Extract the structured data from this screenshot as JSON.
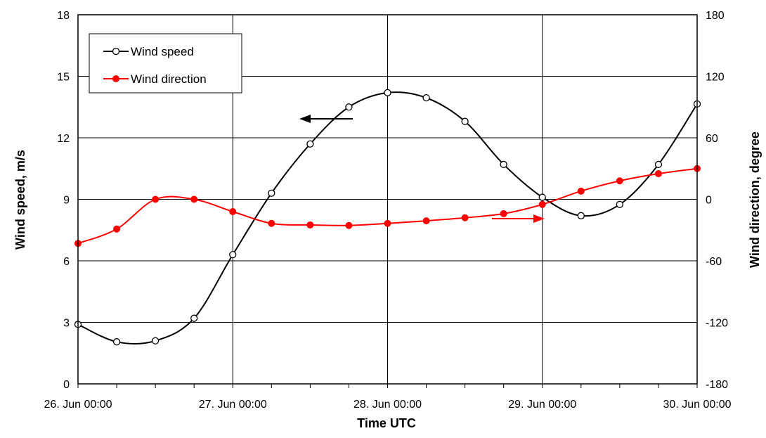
{
  "chart_data": {
    "type": "line",
    "title": "",
    "xlabel": "Time UTC",
    "ylabel": "Wind speed, m/s",
    "y2label": "Wind direction, degree",
    "x_ticks": [
      "26. Jun 00:00",
      "27. Jun 00:00",
      "28. Jun 00:00",
      "29. Jun 00:00",
      "30. Jun 00:00"
    ],
    "xlim": [
      "2000-06-26 00:00",
      "2000-06-30 00:00"
    ],
    "ylim": [
      0,
      18
    ],
    "y_ticks": [
      "0",
      "3",
      "6",
      "9",
      "12",
      "15",
      "18"
    ],
    "y2lim": [
      -180,
      180
    ],
    "y2_ticks": [
      "-180",
      "-120",
      "-60",
      "0",
      "60",
      "120",
      "180"
    ],
    "grid": true,
    "legend_position": "top-left",
    "x": [
      "26. Jun 00:00",
      "26. Jun 12:00",
      "27. Jun 00:00",
      "27. Jun 12:00",
      "28. Jun 00:00",
      "28. Jun 12:00",
      "29. Jun 00:00",
      "29. Jun 12:00",
      "30. Jun 00:00"
    ],
    "series": [
      {
        "name": "Wind speed",
        "axis": "left",
        "color": "#000000",
        "marker": "open-circle",
        "points": [
          [
            "2000-06-26 00:00",
            2.9
          ],
          [
            "2000-06-26 06:00",
            2.05
          ],
          [
            "2000-06-26 12:00",
            2.1
          ],
          [
            "2000-06-26 18:00",
            3.2
          ],
          [
            "2000-06-27 00:00",
            6.3
          ],
          [
            "2000-06-27 06:00",
            9.3
          ],
          [
            "2000-06-27 12:00",
            11.7
          ],
          [
            "2000-06-27 18:00",
            13.5
          ],
          [
            "2000-06-28 00:00",
            14.2
          ],
          [
            "2000-06-28 06:00",
            13.95
          ],
          [
            "2000-06-28 12:00",
            12.8
          ],
          [
            "2000-06-28 18:00",
            10.7
          ],
          [
            "2000-06-29 00:00",
            9.1
          ],
          [
            "2000-06-29 06:00",
            8.2
          ],
          [
            "2000-06-29 12:00",
            8.75
          ],
          [
            "2000-06-29 18:00",
            10.7
          ],
          [
            "2000-06-30 00:00",
            13.65
          ]
        ]
      },
      {
        "name": "Wind direction",
        "axis": "right",
        "color": "#ff0000",
        "marker": "filled-circle",
        "points": [
          [
            "2000-06-26 00:00",
            -43
          ],
          [
            "2000-06-26 06:00",
            -29
          ],
          [
            "2000-06-26 12:00",
            0
          ],
          [
            "2000-06-26 18:00",
            0
          ],
          [
            "2000-06-27 00:00",
            -12
          ],
          [
            "2000-06-27 06:00",
            -23.5
          ],
          [
            "2000-06-27 12:00",
            -25
          ],
          [
            "2000-06-27 18:00",
            -25.5
          ],
          [
            "2000-06-28 00:00",
            -23.5
          ],
          [
            "2000-06-28 06:00",
            -21
          ],
          [
            "2000-06-28 12:00",
            -18
          ],
          [
            "2000-06-28 18:00",
            -14
          ],
          [
            "2000-06-29 00:00",
            -5
          ],
          [
            "2000-06-29 06:00",
            8
          ],
          [
            "2000-06-29 12:00",
            18
          ],
          [
            "2000-06-29 18:00",
            25
          ],
          [
            "2000-06-30 00:00",
            30
          ]
        ]
      }
    ],
    "annotations": [
      {
        "type": "arrow",
        "points_to": "left axis",
        "color": "#000000"
      },
      {
        "type": "arrow",
        "points_to": "right axis",
        "color": "#ff0000"
      }
    ]
  }
}
